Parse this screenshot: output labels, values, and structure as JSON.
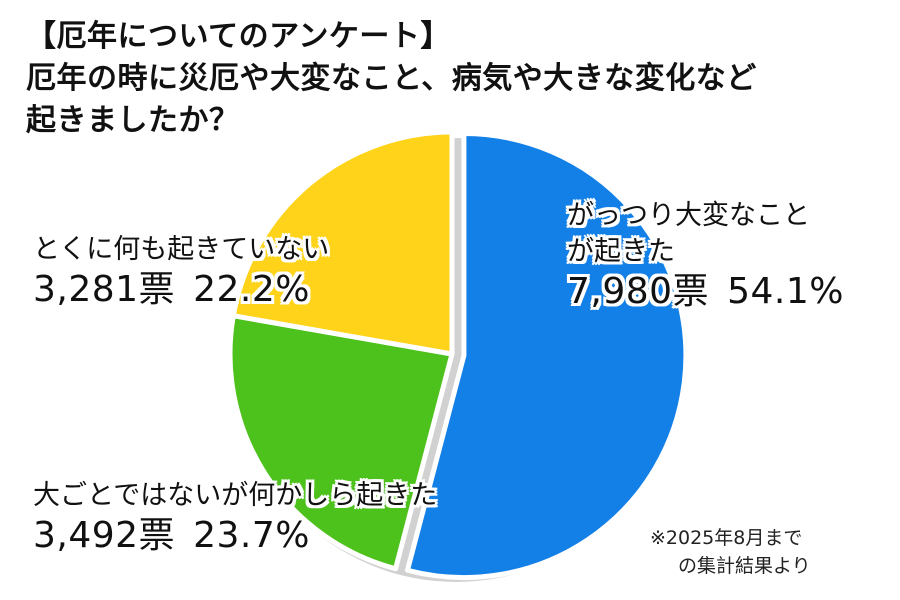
{
  "title": {
    "line1": "【厄年についてのアンケート】",
    "line2": "厄年の時に災厄や大変なこと、病気や大きな変化など",
    "line3": "起きましたか？"
  },
  "chart_data": {
    "type": "pie",
    "title": "【厄年についてのアンケート】厄年の時に災厄や大変なこと、病気や大きな変化など起きましたか？",
    "slices": [
      {
        "label_line1": "がっつり大変なこと",
        "label_line2": "が起きた",
        "votes": 7980,
        "votes_text": "7,980票",
        "percent": 54.1,
        "percent_text": "54.1%",
        "color": "#1380e8"
      },
      {
        "label_line1": "大ごとではないが何かしら起きた",
        "votes": 3492,
        "votes_text": "3,492票",
        "percent": 23.7,
        "percent_text": "23.7%",
        "color": "#4ec21c"
      },
      {
        "label_line1": "とくに何も起きていない",
        "votes": 3281,
        "votes_text": "3,281票",
        "percent": 22.2,
        "percent_text": "22.2%",
        "color": "#fed319"
      }
    ],
    "start_angle": "12 o'clock",
    "direction": "clockwise",
    "exploded_slice": "がっつり大変なことが起きた"
  },
  "note": {
    "line1": "※2025年8月まで",
    "line2": "の集計結果より"
  }
}
